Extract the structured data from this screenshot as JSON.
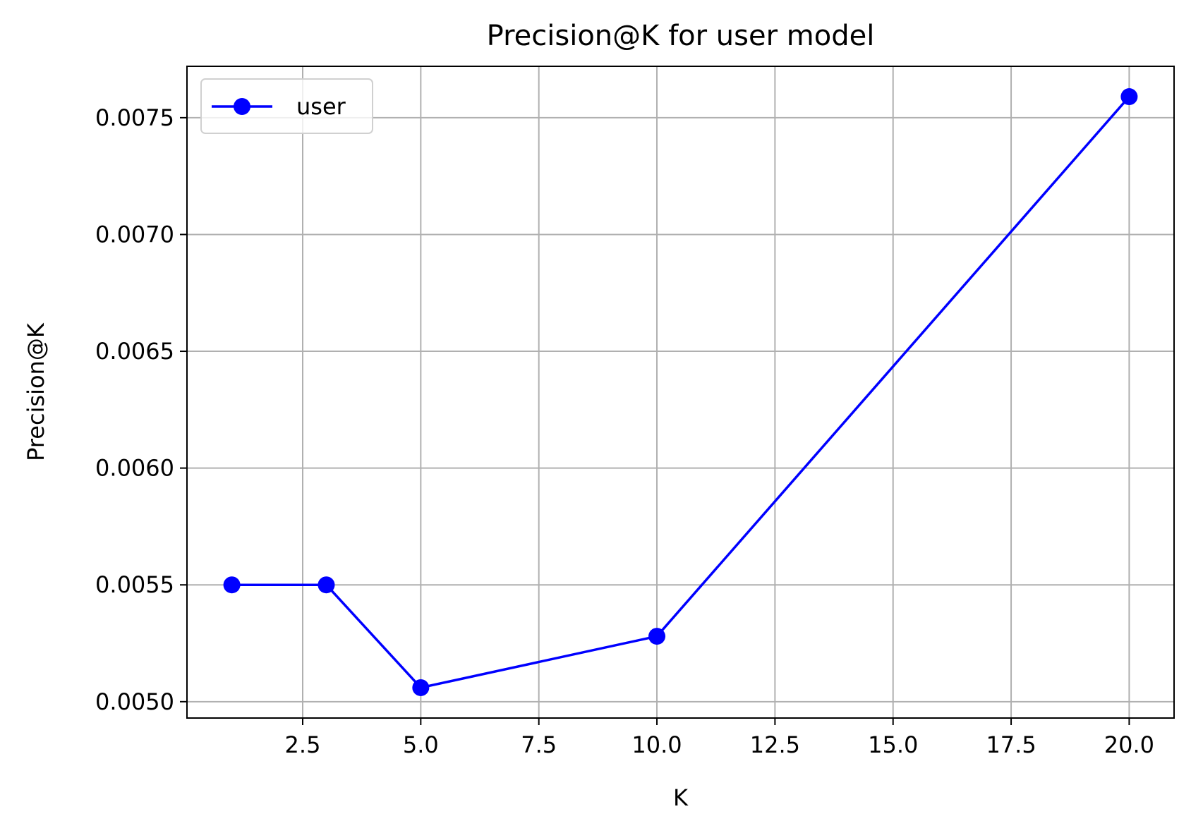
{
  "chart_data": {
    "type": "line",
    "title": "Precision@K for user model",
    "xlabel": "K",
    "ylabel": "Precision@K",
    "x": [
      1,
      3,
      5,
      10,
      20
    ],
    "series": [
      {
        "name": "user",
        "values": [
          0.0055,
          0.0055,
          0.00506,
          0.00528,
          0.00759
        ],
        "color": "#0000ff"
      }
    ],
    "xlim": [
      0.05,
      20.95
    ],
    "ylim": [
      0.00493,
      0.00772
    ],
    "xticks": [
      2.5,
      5.0,
      7.5,
      10.0,
      12.5,
      15.0,
      17.5,
      20.0
    ],
    "xtick_labels": [
      "2.5",
      "5.0",
      "7.5",
      "10.0",
      "12.5",
      "15.0",
      "17.5",
      "20.0"
    ],
    "yticks": [
      0.005,
      0.0055,
      0.006,
      0.0065,
      0.007,
      0.0075
    ],
    "ytick_labels": [
      "0.0050",
      "0.0055",
      "0.0060",
      "0.0065",
      "0.0070",
      "0.0075"
    ],
    "grid": true,
    "legend_position": "top-left",
    "grid_color": "#b0b0b0"
  }
}
